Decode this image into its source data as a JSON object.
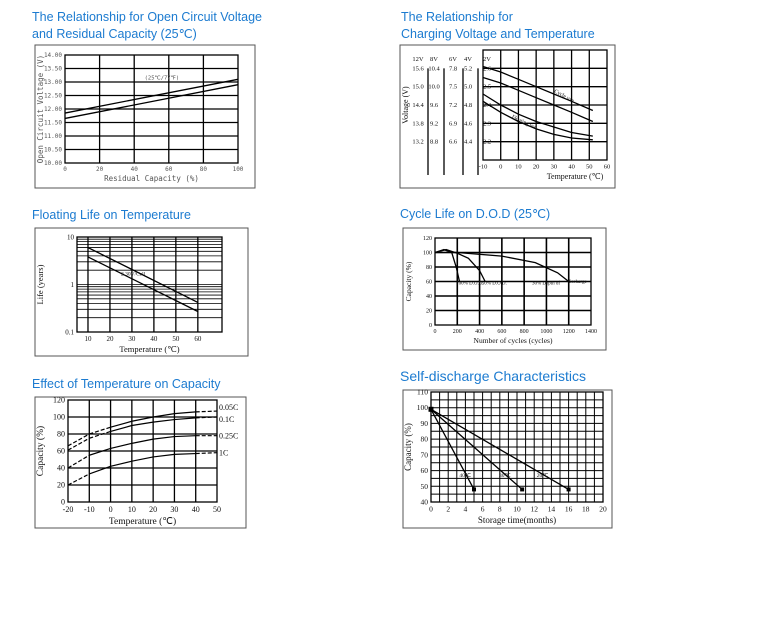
{
  "colors": {
    "title": "#1c7bd0",
    "line": "#000000",
    "frame": "#555555"
  },
  "chart_data": [
    {
      "id": "c1",
      "type": "line",
      "title_lines": [
        "The Relationship for Open Circuit Voltage",
        "and Residual Capacity (25℃)"
      ],
      "xlabel": "Residual Capacity (%)",
      "ylabel": "Open Circuit Voltage (V)",
      "xlim": [
        0,
        100
      ],
      "ylim": [
        10,
        14
      ],
      "xticks": [
        0,
        20,
        40,
        60,
        80,
        100
      ],
      "yticks": [
        "10.00",
        "10.50",
        "11.00",
        "11.50",
        "12.00",
        "12.50",
        "13.00",
        "13.50",
        "14.00"
      ],
      "grid": true,
      "series": [
        {
          "x": [
            0,
            100
          ],
          "y": [
            11.85,
            13.1
          ]
        },
        {
          "x": [
            0,
            100
          ],
          "y": [
            11.65,
            12.9
          ]
        }
      ],
      "annotations": [
        {
          "text": "(25℃/77℉)",
          "x": 46,
          "y": 13.1
        }
      ]
    },
    {
      "id": "c2",
      "type": "line",
      "title_lines": [
        "The Relationship for",
        "Charging Voltage and Temperature"
      ],
      "xlabel": "Temperature (℃)",
      "ylabel": "Voltage (V)",
      "xlim": [
        -10,
        60
      ],
      "ylim": [
        2.1,
        2.7
      ],
      "xticks": [
        -10,
        0,
        10,
        20,
        30,
        40,
        50,
        60
      ],
      "yticks": [
        2.2,
        2.3,
        2.4,
        2.5,
        2.6
      ],
      "voltage_scales": [
        {
          "name": "12V",
          "values": [
            "15.6",
            "15.0",
            "14.4",
            "13.8",
            "13.2"
          ]
        },
        {
          "name": "8V",
          "values": [
            "10.4",
            "10.0",
            "9.6",
            "9.2",
            "8.8"
          ]
        },
        {
          "name": "6V",
          "values": [
            "7.8",
            "7.5",
            "7.2",
            "6.9",
            "6.6"
          ]
        },
        {
          "name": "4V",
          "values": [
            "5.2",
            "5.0",
            "4.8",
            "4.6",
            "4.4"
          ]
        },
        {
          "name": "2V",
          "values": [
            "2.6",
            "2.5",
            "2.4",
            "2.3",
            "2.2"
          ]
        }
      ],
      "grid": true,
      "series": [
        {
          "x": [
            -10,
            0,
            10,
            20,
            30,
            40,
            52
          ],
          "y": [
            2.61,
            2.58,
            2.54,
            2.5,
            2.46,
            2.42,
            2.37
          ]
        },
        {
          "x": [
            -10,
            0,
            10,
            20,
            30,
            40,
            52
          ],
          "y": [
            2.55,
            2.52,
            2.48,
            2.44,
            2.4,
            2.36,
            2.31
          ]
        },
        {
          "x": [
            -10,
            0,
            10,
            20,
            30,
            40,
            52
          ],
          "y": [
            2.46,
            2.4,
            2.35,
            2.31,
            2.28,
            2.25,
            2.23
          ]
        },
        {
          "x": [
            -10,
            0,
            10,
            20,
            30,
            40,
            52
          ],
          "y": [
            2.42,
            2.36,
            2.31,
            2.27,
            2.24,
            2.22,
            2.21
          ]
        }
      ],
      "annotations": [
        {
          "text": "Cycle use",
          "x": 30,
          "y": 2.47,
          "rotate": 28
        },
        {
          "text": "Floating use",
          "x": 6,
          "y": 2.33,
          "rotate": 25
        }
      ]
    },
    {
      "id": "c3",
      "type": "line",
      "title_lines": [
        "Floating Life on Temperature"
      ],
      "xlabel": "Temperature (℃)",
      "ylabel": "Life (years)",
      "xlim": [
        5,
        71
      ],
      "ylim": [
        0.1,
        10
      ],
      "yscale": "log",
      "xticks": [
        10,
        20,
        30,
        40,
        50,
        60
      ],
      "yticks": [
        "0.1",
        "1",
        "10"
      ],
      "grid": true,
      "series": [
        {
          "x": [
            10,
            60
          ],
          "y": [
            6,
            0.42
          ]
        },
        {
          "x": [
            10,
            60
          ],
          "y": [
            3.8,
            0.27
          ]
        }
      ],
      "annotations": [
        {
          "text": "2.30V/Cell",
          "x": 25,
          "y": 1.55
        }
      ]
    },
    {
      "id": "c4",
      "type": "line",
      "title_lines": [
        "Cycle Life on D.O.D (25℃)"
      ],
      "xlabel": "Number of cycles (cycles)",
      "ylabel": "Capacity (%)",
      "xlim": [
        0,
        1400
      ],
      "ylim": [
        0,
        120
      ],
      "xticks": [
        0,
        200,
        400,
        600,
        800,
        1000,
        1200,
        1400
      ],
      "yticks": [
        0,
        20,
        40,
        60,
        80,
        100,
        120
      ],
      "grid": true,
      "series": [
        {
          "name": "100% D.O.D.",
          "x": [
            0,
            80,
            150,
            190,
            220
          ],
          "y": [
            100,
            104,
            100,
            80,
            60
          ]
        },
        {
          "name": "50% D.O.D.",
          "x": [
            0,
            100,
            200,
            300,
            400,
            450
          ],
          "y": [
            100,
            104,
            99,
            92,
            75,
            60
          ]
        },
        {
          "name": "30% Depth of discharge",
          "x": [
            0,
            200,
            600,
            900,
            1100,
            1200
          ],
          "y": [
            100,
            100,
            95,
            86,
            72,
            60
          ]
        }
      ],
      "annotations": [
        {
          "text": "100% D.O.D.",
          "x": 190,
          "y": 56
        },
        {
          "text": "50% D.O.D.",
          "x": 420,
          "y": 56
        },
        {
          "text": "30% Depth of",
          "x": 870,
          "y": 56
        },
        {
          "text": "discharge",
          "x": 1190,
          "y": 58
        }
      ]
    },
    {
      "id": "c5",
      "type": "line",
      "title_lines": [
        "Effect of Temperature on Capacity"
      ],
      "xlabel": "Temperature (℃)",
      "ylabel": "Capacity (%)",
      "xlim": [
        -20,
        50
      ],
      "ylim": [
        0,
        120
      ],
      "xticks": [
        -20,
        -10,
        0,
        10,
        20,
        30,
        40,
        50
      ],
      "yticks": [
        0,
        20,
        40,
        60,
        80,
        100,
        120
      ],
      "grid": true,
      "series": [
        {
          "name": "0.05C",
          "x": [
            -20,
            -10,
            0,
            10,
            20,
            30,
            40,
            50
          ],
          "y": [
            66,
            80,
            88,
            95,
            100,
            104,
            106,
            107
          ]
        },
        {
          "name": "0.1C",
          "x": [
            -20,
            -10,
            0,
            10,
            20,
            30,
            40,
            50
          ],
          "y": [
            61,
            75,
            83,
            90,
            94,
            97,
            99,
            100
          ]
        },
        {
          "name": "0.25C",
          "x": [
            -20,
            -10,
            0,
            10,
            20,
            30,
            40,
            50
          ],
          "y": [
            40,
            55,
            63,
            69,
            74,
            77,
            78,
            78
          ]
        },
        {
          "name": "1C",
          "x": [
            -20,
            -10,
            0,
            10,
            20,
            30,
            40,
            50
          ],
          "y": [
            20,
            33,
            42,
            48,
            53,
            56,
            57,
            58
          ]
        }
      ],
      "legend_placement": "right"
    },
    {
      "id": "c6",
      "type": "line",
      "title_lines": [
        "Self-discharge Characteristics"
      ],
      "xlabel": "Storage time(months)",
      "ylabel": "Capacity (%)",
      "xlim": [
        0,
        20
      ],
      "ylim": [
        40,
        110
      ],
      "xticks": [
        0,
        2,
        4,
        6,
        8,
        10,
        12,
        14,
        16,
        18,
        20
      ],
      "yticks": [
        40,
        50,
        60,
        70,
        80,
        90,
        100,
        110
      ],
      "grid": true,
      "series": [
        {
          "name": "40℃",
          "x": [
            0,
            5
          ],
          "y": [
            99,
            48
          ]
        },
        {
          "name": "30℃",
          "x": [
            0,
            10.6
          ],
          "y": [
            99,
            48
          ]
        },
        {
          "name": "20℃",
          "x": [
            0,
            16
          ],
          "y": [
            99,
            48
          ]
        }
      ],
      "annotations": [
        {
          "text": "40℃",
          "x": 3.3,
          "y": 56
        },
        {
          "text": "30℃",
          "x": 7.9,
          "y": 56
        },
        {
          "text": "20℃",
          "x": 12.3,
          "y": 56
        }
      ]
    }
  ]
}
